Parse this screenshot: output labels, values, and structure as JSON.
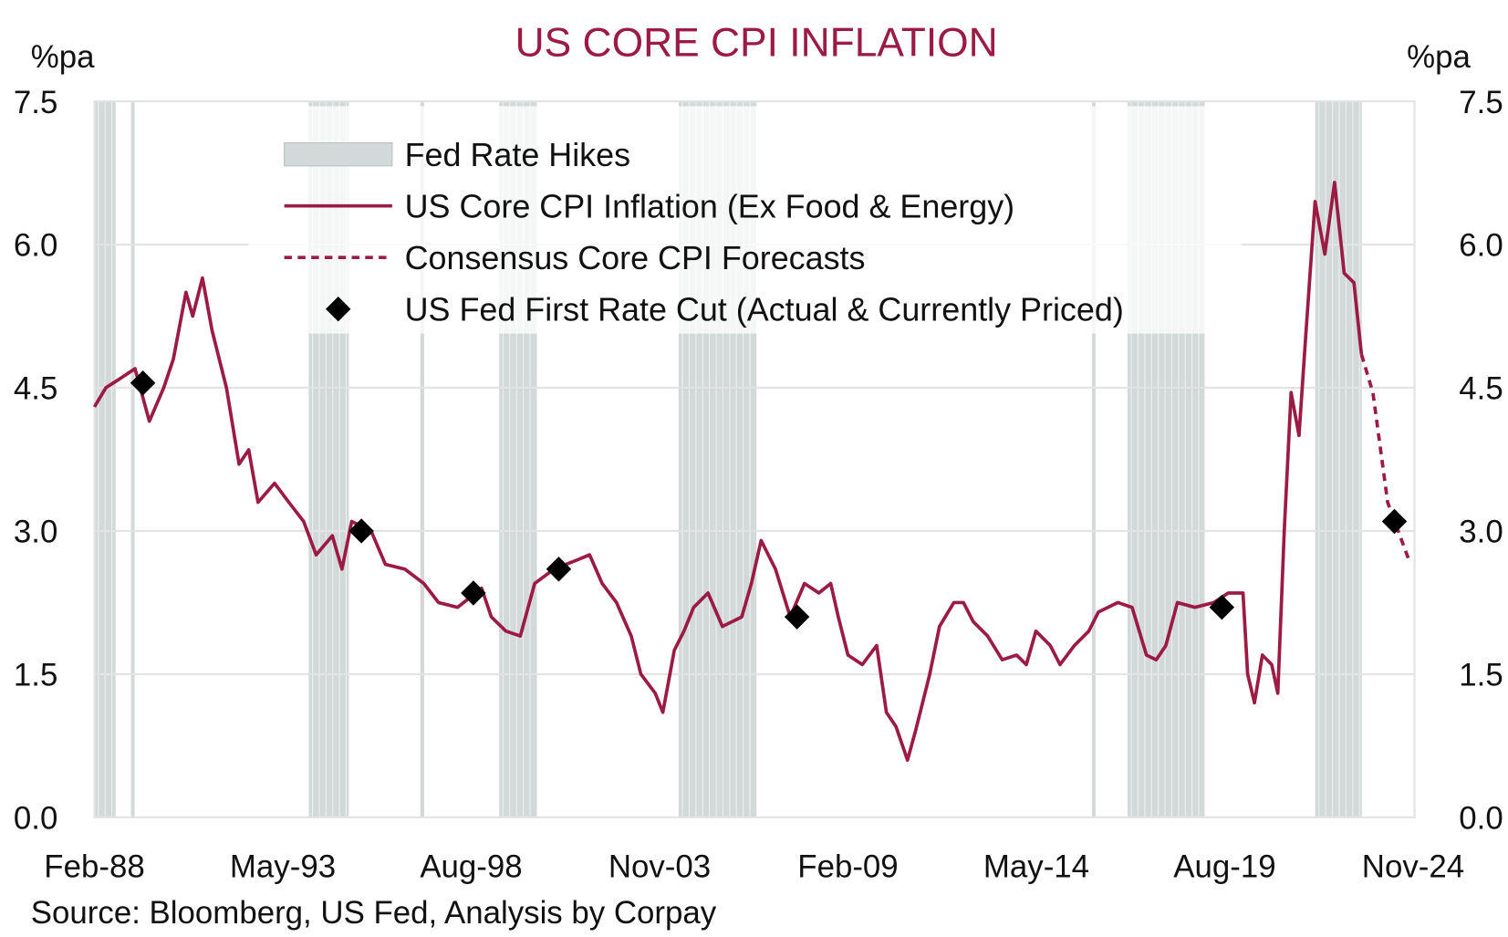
{
  "chart_data": {
    "type": "line",
    "title": "US CORE CPI INFLATION",
    "ylabel_left": "%pa",
    "ylabel_right": "%pa",
    "source": "Source: Bloomberg, US Fed, Analysis by Corpay",
    "ylim": [
      0,
      7.5
    ],
    "yticks": [
      "0.0",
      "1.5",
      "3.0",
      "4.5",
      "6.0",
      "7.5"
    ],
    "ytick_values": [
      0,
      1.5,
      3.0,
      4.5,
      6.0,
      7.5
    ],
    "xlim": [
      1988.08,
      2024.87
    ],
    "xticks": [
      "Feb-88",
      "May-93",
      "Aug-98",
      "Nov-03",
      "Feb-09",
      "May-14",
      "Aug-19",
      "Nov-24"
    ],
    "xtick_values": [
      1988.08,
      1993.33,
      1998.58,
      2003.83,
      2009.08,
      2014.33,
      2019.58,
      2024.83
    ],
    "grid": true,
    "legend_placement": "top-center",
    "colors": {
      "line": "#9b1b44",
      "bands": "#d3d9d9",
      "marker": "#000000",
      "grid": "#e3e3e3"
    },
    "legend": [
      {
        "label": "Fed Rate Hikes",
        "kind": "band"
      },
      {
        "label": "US Core CPI Inflation (Ex Food & Energy)",
        "kind": "line"
      },
      {
        "label": "Consensus Core CPI Forecasts",
        "kind": "dashed"
      },
      {
        "label": "US Fed First Rate Cut (Actual & Currently Priced)",
        "kind": "diamond"
      }
    ],
    "fed_rate_hikes": [
      [
        1988.08,
        1988.67
      ],
      [
        1989.1,
        1989.2
      ],
      [
        1994.05,
        1995.17
      ],
      [
        1997.16,
        1997.27
      ],
      [
        1999.36,
        2000.41
      ],
      [
        2004.36,
        2006.53
      ],
      [
        2015.88,
        2015.98
      ],
      [
        2016.87,
        2019.02
      ],
      [
        2022.1,
        2023.4
      ]
    ],
    "series": [
      {
        "name": "US Core CPI Inflation (Ex Food & Energy)",
        "points": [
          [
            1988.08,
            4.3
          ],
          [
            1988.4,
            4.5
          ],
          [
            1988.81,
            4.6
          ],
          [
            1989.21,
            4.7
          ],
          [
            1989.61,
            4.15
          ],
          [
            1990.01,
            4.5
          ],
          [
            1990.28,
            4.8
          ],
          [
            1990.63,
            5.5
          ],
          [
            1990.82,
            5.25
          ],
          [
            1991.09,
            5.65
          ],
          [
            1991.36,
            5.1
          ],
          [
            1991.76,
            4.5
          ],
          [
            1992.11,
            3.7
          ],
          [
            1992.38,
            3.85
          ],
          [
            1992.64,
            3.3
          ],
          [
            1993.1,
            3.5
          ],
          [
            1993.5,
            3.3
          ],
          [
            1993.91,
            3.1
          ],
          [
            1994.26,
            2.75
          ],
          [
            1994.71,
            2.95
          ],
          [
            1994.98,
            2.6
          ],
          [
            1995.25,
            3.1
          ],
          [
            1995.79,
            3.0
          ],
          [
            1996.19,
            2.65
          ],
          [
            1996.73,
            2.6
          ],
          [
            1997.26,
            2.45
          ],
          [
            1997.67,
            2.25
          ],
          [
            1998.2,
            2.2
          ],
          [
            1998.87,
            2.4
          ],
          [
            1999.14,
            2.1
          ],
          [
            1999.55,
            1.95
          ],
          [
            1999.95,
            1.9
          ],
          [
            2000.35,
            2.45
          ],
          [
            2000.89,
            2.6
          ],
          [
            2001.56,
            2.7
          ],
          [
            2001.88,
            2.75
          ],
          [
            2002.23,
            2.45
          ],
          [
            2002.63,
            2.25
          ],
          [
            2003.04,
            1.9
          ],
          [
            2003.31,
            1.5
          ],
          [
            2003.71,
            1.3
          ],
          [
            2003.92,
            1.1
          ],
          [
            2004.24,
            1.75
          ],
          [
            2004.51,
            1.95
          ],
          [
            2004.78,
            2.2
          ],
          [
            2005.18,
            2.35
          ],
          [
            2005.58,
            2.0
          ],
          [
            2006.12,
            2.1
          ],
          [
            2006.39,
            2.45
          ],
          [
            2006.66,
            2.9
          ],
          [
            2007.06,
            2.6
          ],
          [
            2007.47,
            2.1
          ],
          [
            2007.87,
            2.45
          ],
          [
            2008.27,
            2.35
          ],
          [
            2008.6,
            2.45
          ],
          [
            2008.81,
            2.1
          ],
          [
            2009.08,
            1.7
          ],
          [
            2009.48,
            1.6
          ],
          [
            2009.88,
            1.8
          ],
          [
            2010.15,
            1.1
          ],
          [
            2010.42,
            0.95
          ],
          [
            2010.74,
            0.6
          ],
          [
            2010.96,
            0.9
          ],
          [
            2011.36,
            1.5
          ],
          [
            2011.63,
            2.0
          ],
          [
            2012.03,
            2.25
          ],
          [
            2012.3,
            2.25
          ],
          [
            2012.57,
            2.05
          ],
          [
            2012.97,
            1.9
          ],
          [
            2013.38,
            1.65
          ],
          [
            2013.78,
            1.7
          ],
          [
            2014.05,
            1.6
          ],
          [
            2014.32,
            1.95
          ],
          [
            2014.72,
            1.8
          ],
          [
            2014.99,
            1.6
          ],
          [
            2015.39,
            1.8
          ],
          [
            2015.79,
            1.95
          ],
          [
            2016.06,
            2.15
          ],
          [
            2016.6,
            2.25
          ],
          [
            2017.0,
            2.2
          ],
          [
            2017.4,
            1.7
          ],
          [
            2017.67,
            1.65
          ],
          [
            2017.94,
            1.8
          ],
          [
            2018.26,
            2.25
          ],
          [
            2018.75,
            2.2
          ],
          [
            2019.28,
            2.25
          ],
          [
            2019.68,
            2.35
          ],
          [
            2020.09,
            2.35
          ],
          [
            2020.22,
            1.5
          ],
          [
            2020.41,
            1.2
          ],
          [
            2020.63,
            1.7
          ],
          [
            2020.89,
            1.6
          ],
          [
            2021.06,
            1.3
          ],
          [
            2021.24,
            3.0
          ],
          [
            2021.43,
            4.45
          ],
          [
            2021.65,
            4.0
          ],
          [
            2021.83,
            5.0
          ],
          [
            2022.1,
            6.45
          ],
          [
            2022.37,
            5.9
          ],
          [
            2022.64,
            6.65
          ],
          [
            2022.91,
            5.7
          ],
          [
            2023.18,
            5.6
          ],
          [
            2023.39,
            4.85
          ]
        ]
      },
      {
        "name": "Consensus Core CPI Forecasts",
        "dashed": true,
        "points": [
          [
            2023.39,
            4.85
          ],
          [
            2023.71,
            4.45
          ],
          [
            2024.12,
            3.3
          ],
          [
            2024.71,
            2.7
          ]
        ]
      }
    ],
    "first_rate_cuts": [
      [
        1989.43,
        4.55
      ],
      [
        1995.52,
        3.0
      ],
      [
        1998.64,
        2.35
      ],
      [
        2001.02,
        2.6
      ],
      [
        2007.66,
        2.1
      ],
      [
        2019.5,
        2.2
      ],
      [
        2024.31,
        3.1
      ]
    ]
  }
}
